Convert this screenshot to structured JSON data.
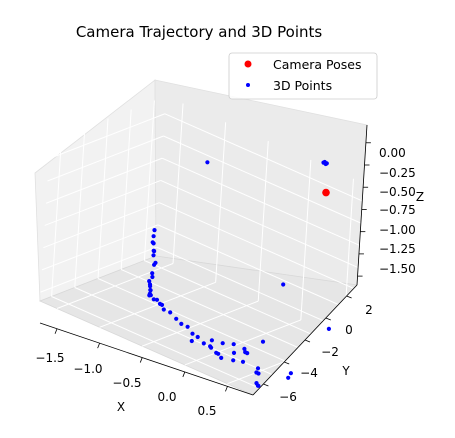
{
  "chart_data": {
    "type": "scatter",
    "projection": "3d",
    "title": "Camera Trajectory and 3D Points",
    "xlabel": "X",
    "ylabel": "Y",
    "zlabel": "Z",
    "xlim": [
      -1.7,
      0.8
    ],
    "ylim": [
      -7,
      3
    ],
    "zlim": [
      -1.6,
      0.2
    ],
    "xticks": [
      "−1.5",
      "−1.0",
      "−0.5",
      "0.0",
      "0.5"
    ],
    "yticks": [
      "−6",
      "−4",
      "−2",
      "0",
      "2"
    ],
    "zticks": [
      "0.00",
      "−0.25",
      "−0.50",
      "−0.75",
      "−1.00",
      "−1.25",
      "−1.50"
    ],
    "grid": true,
    "legend_position": "top-right",
    "series": [
      {
        "name": "Camera Poses",
        "color": "#ff0000",
        "marker": "circle",
        "points": [
          {
            "x": 0.3,
            "y": 2.2,
            "z": 0.0
          }
        ]
      },
      {
        "name": "3D Points",
        "color": "#0000ff",
        "marker": "small-circle",
        "points": [
          {
            "x": 0.23,
            "y": 2.35,
            "z": 0.3
          },
          {
            "x": 0.24,
            "y": 2.38,
            "z": 0.31
          },
          {
            "x": 0.25,
            "y": 2.4,
            "z": 0.29
          },
          {
            "x": 0.26,
            "y": 2.42,
            "z": 0.3
          },
          {
            "x": -1.05,
            "y": 2.0,
            "z": -0.22
          },
          {
            "x": 0.2,
            "y": -0.3,
            "z": -0.95
          },
          {
            "x": -1.4,
            "y": 0.4,
            "z": -1.05
          },
          {
            "x": -1.38,
            "y": 0.2,
            "z": -1.1
          },
          {
            "x": -1.36,
            "y": 0.0,
            "z": -1.15
          },
          {
            "x": -1.4,
            "y": 0.4,
            "z": -1.2
          },
          {
            "x": -1.35,
            "y": 0.1,
            "z": -1.25
          },
          {
            "x": -1.42,
            "y": 0.6,
            "z": -1.3
          },
          {
            "x": -1.38,
            "y": 0.3,
            "z": -1.32
          },
          {
            "x": -1.3,
            "y": -0.1,
            "z": -1.35
          },
          {
            "x": -1.34,
            "y": 0.1,
            "z": -1.4
          },
          {
            "x": -1.33,
            "y": -0.1,
            "z": -1.48
          },
          {
            "x": -1.3,
            "y": -0.3,
            "z": -1.5
          },
          {
            "x": -1.32,
            "y": -0.4,
            "z": -1.55
          },
          {
            "x": -1.28,
            "y": -0.6,
            "z": -1.58
          },
          {
            "x": -1.25,
            "y": -0.8,
            "z": -1.6
          },
          {
            "x": -1.27,
            "y": -0.7,
            "z": -1.55
          },
          {
            "x": -1.22,
            "y": -1.0,
            "z": -1.58
          },
          {
            "x": -1.2,
            "y": -1.2,
            "z": -1.6
          },
          {
            "x": -1.18,
            "y": -1.4,
            "z": -1.6
          },
          {
            "x": -1.15,
            "y": -1.5,
            "z": -1.58
          },
          {
            "x": -1.1,
            "y": -1.6,
            "z": -1.6
          },
          {
            "x": -1.05,
            "y": -1.7,
            "z": -1.58
          },
          {
            "x": -1.0,
            "y": -1.8,
            "z": -1.6
          },
          {
            "x": -0.95,
            "y": -2.0,
            "z": -1.58
          },
          {
            "x": -0.9,
            "y": -2.2,
            "z": -1.6
          },
          {
            "x": -0.8,
            "y": -2.4,
            "z": -1.58
          },
          {
            "x": -0.7,
            "y": -2.6,
            "z": -1.6
          },
          {
            "x": -0.6,
            "y": -2.9,
            "z": -1.6
          },
          {
            "x": -0.5,
            "y": -3.1,
            "z": -1.58
          },
          {
            "x": -0.4,
            "y": -3.4,
            "z": -1.6
          },
          {
            "x": -0.3,
            "y": -3.7,
            "z": -1.58
          },
          {
            "x": -0.2,
            "y": -3.9,
            "z": -1.6
          },
          {
            "x": -0.1,
            "y": -4.1,
            "z": -1.58
          },
          {
            "x": 0.0,
            "y": -4.3,
            "z": -1.6
          },
          {
            "x": 0.05,
            "y": -4.5,
            "z": -1.58
          },
          {
            "x": 0.1,
            "y": -4.6,
            "z": -1.6
          },
          {
            "x": -0.2,
            "y": -3.2,
            "z": -1.6
          },
          {
            "x": -0.1,
            "y": -3.0,
            "z": -1.6
          },
          {
            "x": 0.0,
            "y": -2.8,
            "z": -1.58
          },
          {
            "x": 0.1,
            "y": -2.6,
            "z": -1.6
          },
          {
            "x": 0.15,
            "y": -2.9,
            "z": -1.6
          },
          {
            "x": 0.2,
            "y": -3.1,
            "z": -1.58
          },
          {
            "x": 0.1,
            "y": -3.5,
            "z": -1.6
          },
          {
            "x": -0.1,
            "y": -4.0,
            "z": -1.6
          },
          {
            "x": -0.3,
            "y": -4.2,
            "z": -1.6
          },
          {
            "x": 0.2,
            "y": -4.3,
            "z": -1.6
          },
          {
            "x": 0.3,
            "y": -4.2,
            "z": -1.58
          },
          {
            "x": 0.45,
            "y": -4.0,
            "z": -1.6
          },
          {
            "x": 0.5,
            "y": -4.5,
            "z": -1.6
          },
          {
            "x": 0.55,
            "y": -4.7,
            "z": -1.58
          },
          {
            "x": 0.65,
            "y": -5.6,
            "z": -1.6
          },
          {
            "x": 0.7,
            "y": -5.8,
            "z": -1.6
          },
          {
            "x": 0.72,
            "y": -6.0,
            "z": -1.58
          },
          {
            "x": 0.7,
            "y": -3.0,
            "z": -1.6
          },
          {
            "x": 0.75,
            "y": -3.6,
            "z": -1.6
          },
          {
            "x": 0.65,
            "y": 0.5,
            "z": -1.3
          },
          {
            "x": 0.1,
            "y": -1.0,
            "z": -1.6
          }
        ]
      }
    ]
  }
}
